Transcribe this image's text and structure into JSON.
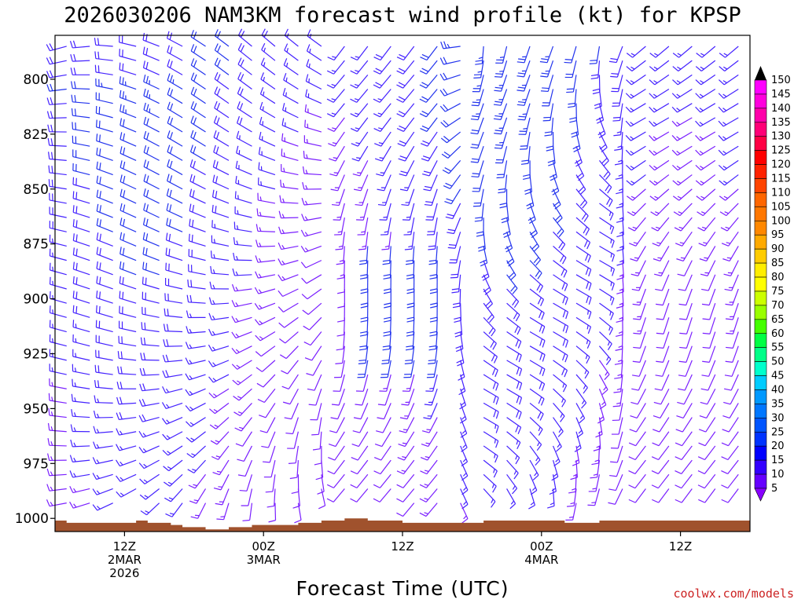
{
  "chart_data": {
    "type": "wind_profile",
    "title": "2026030206 NAM3KM forecast wind profile (kt) for KPSP",
    "xlabel": "Forecast Time (UTC)",
    "ylabel": "",
    "y_ticks": [
      "800",
      "825",
      "850",
      "875",
      "900",
      "925",
      "950",
      "975",
      "1000"
    ],
    "ylim": [
      780,
      1006
    ],
    "x_ticks": [
      {
        "hour": 6,
        "line1": "12Z",
        "line2": "2MAR",
        "line3": "2026"
      },
      {
        "hour": 18,
        "line1": "00Z",
        "line2": "3MAR",
        "line3": ""
      },
      {
        "hour": 30,
        "line1": "12Z",
        "line2": "",
        "line3": ""
      },
      {
        "hour": 42,
        "line1": "00Z",
        "line2": "4MAR",
        "line3": ""
      },
      {
        "hour": 54,
        "line1": "12Z",
        "line2": "",
        "line3": ""
      }
    ],
    "xlim": [
      0,
      60
    ],
    "surface_pressure": [
      1001,
      1002,
      1002,
      1002,
      1002,
      1002,
      1002,
      1001,
      1002,
      1002,
      1003,
      1004,
      1004,
      1005,
      1005,
      1004,
      1004,
      1003,
      1003,
      1003,
      1003,
      1002,
      1002,
      1001,
      1001,
      1000,
      1000,
      1001,
      1001,
      1001,
      1002,
      1002,
      1002,
      1002,
      1002,
      1002,
      1002,
      1001,
      1001,
      1001,
      1001,
      1001,
      1001,
      1001,
      1002,
      1002,
      1002,
      1001,
      1001,
      1001,
      1001,
      1001,
      1001,
      1001,
      1001,
      1001,
      1001,
      1001,
      1001,
      1001
    ],
    "wind_barbs": "wind direction and speed at each hour and level (kt)",
    "colorbar": {
      "labels": [
        "150",
        "145",
        "140",
        "135",
        "130",
        "125",
        "120",
        "115",
        "110",
        "105",
        "100",
        "95",
        "90",
        "85",
        "80",
        "75",
        "70",
        "65",
        "60",
        "55",
        "50",
        "45",
        "40",
        "35",
        "30",
        "25",
        "20",
        "15",
        "10",
        "5"
      ],
      "colors": [
        "#ff00ff",
        "#ff00dd",
        "#ff00aa",
        "#ff0077",
        "#ff0044",
        "#ff0000",
        "#ff2200",
        "#ff4400",
        "#ff6600",
        "#ff7700",
        "#ff8800",
        "#ffaa00",
        "#ffcc00",
        "#ffee00",
        "#ffff00",
        "#ccff00",
        "#99ff00",
        "#44ff00",
        "#00ff44",
        "#00ff88",
        "#00ffcc",
        "#00ccff",
        "#0099ff",
        "#0077ff",
        "#0055ff",
        "#0033ff",
        "#0000ff",
        "#3300ff",
        "#6600ff",
        "#8800ff"
      ]
    }
  },
  "credit": "coolwx.com/models"
}
